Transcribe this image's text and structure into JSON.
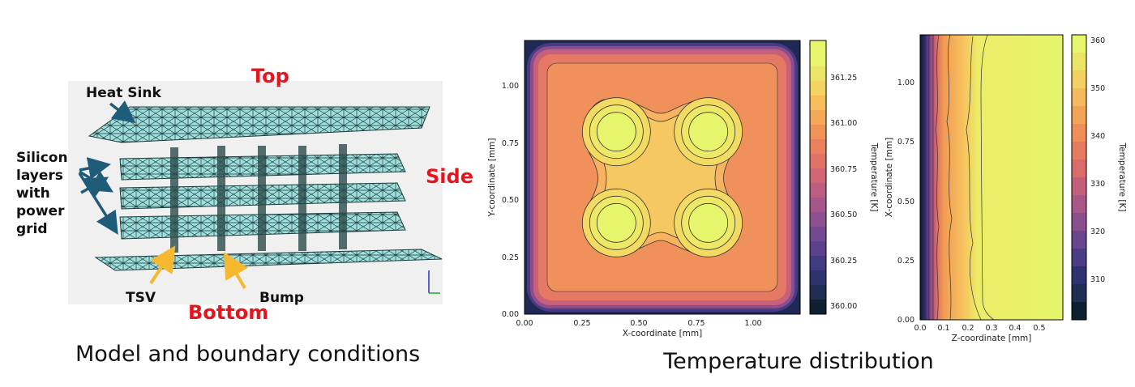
{
  "model": {
    "labels": {
      "heat_sink": "Heat Sink",
      "top": "Top",
      "side": "Side",
      "bottom": "Bottom",
      "silicon": [
        "Silicon",
        "layers",
        "with",
        "power",
        "grid"
      ],
      "tsv": "TSV",
      "bump": "Bump"
    },
    "caption": "Model and boundary conditions"
  },
  "temperature_caption": "Temperature distribution",
  "colors": {
    "arrow_blue": "#1f5c7a",
    "arrow_yellow": "#f5b82e",
    "red_label": "#e8141b",
    "mesh_fill": "#9fe0df",
    "mesh_line": "#1e3a3a"
  },
  "chart_data": [
    {
      "type": "heatmap",
      "title": "",
      "xlabel": "X-coordinate [mm]",
      "ylabel": "Y-coordinate [mm]",
      "xlim": [
        0,
        1.2
      ],
      "ylim": [
        0,
        1.2
      ],
      "xticks": [
        "0.00",
        "0.25",
        "0.50",
        "0.75",
        "1.00"
      ],
      "yticks": [
        "0.00",
        "0.25",
        "0.50",
        "0.75",
        "1.00"
      ],
      "colorbar": {
        "label": "Temperature [K]",
        "range": [
          359.95,
          361.45
        ],
        "ticks": [
          "360.00",
          "360.25",
          "360.50",
          "360.75",
          "361.00",
          "361.25"
        ]
      },
      "hotspots": [
        {
          "x": 0.4,
          "y": 0.8
        },
        {
          "x": 0.8,
          "y": 0.8
        },
        {
          "x": 0.4,
          "y": 0.4
        },
        {
          "x": 0.8,
          "y": 0.4
        }
      ]
    },
    {
      "type": "heatmap",
      "title": "",
      "xlabel": "Z-coordinate [mm]",
      "ylabel": "X-coordinate [mm]",
      "xlim": [
        0,
        0.6
      ],
      "ylim": [
        0,
        1.2
      ],
      "xticks": [
        "0.0",
        "0.1",
        "0.2",
        "0.3",
        "0.4",
        "0.5"
      ],
      "yticks": [
        "0.00",
        "0.25",
        "0.50",
        "0.75",
        "1.00"
      ],
      "colorbar": {
        "label": "Temperature [K]",
        "range": [
          301,
          362
        ],
        "ticks": [
          "310",
          "320",
          "330",
          "340",
          "350",
          "360"
        ]
      }
    }
  ]
}
